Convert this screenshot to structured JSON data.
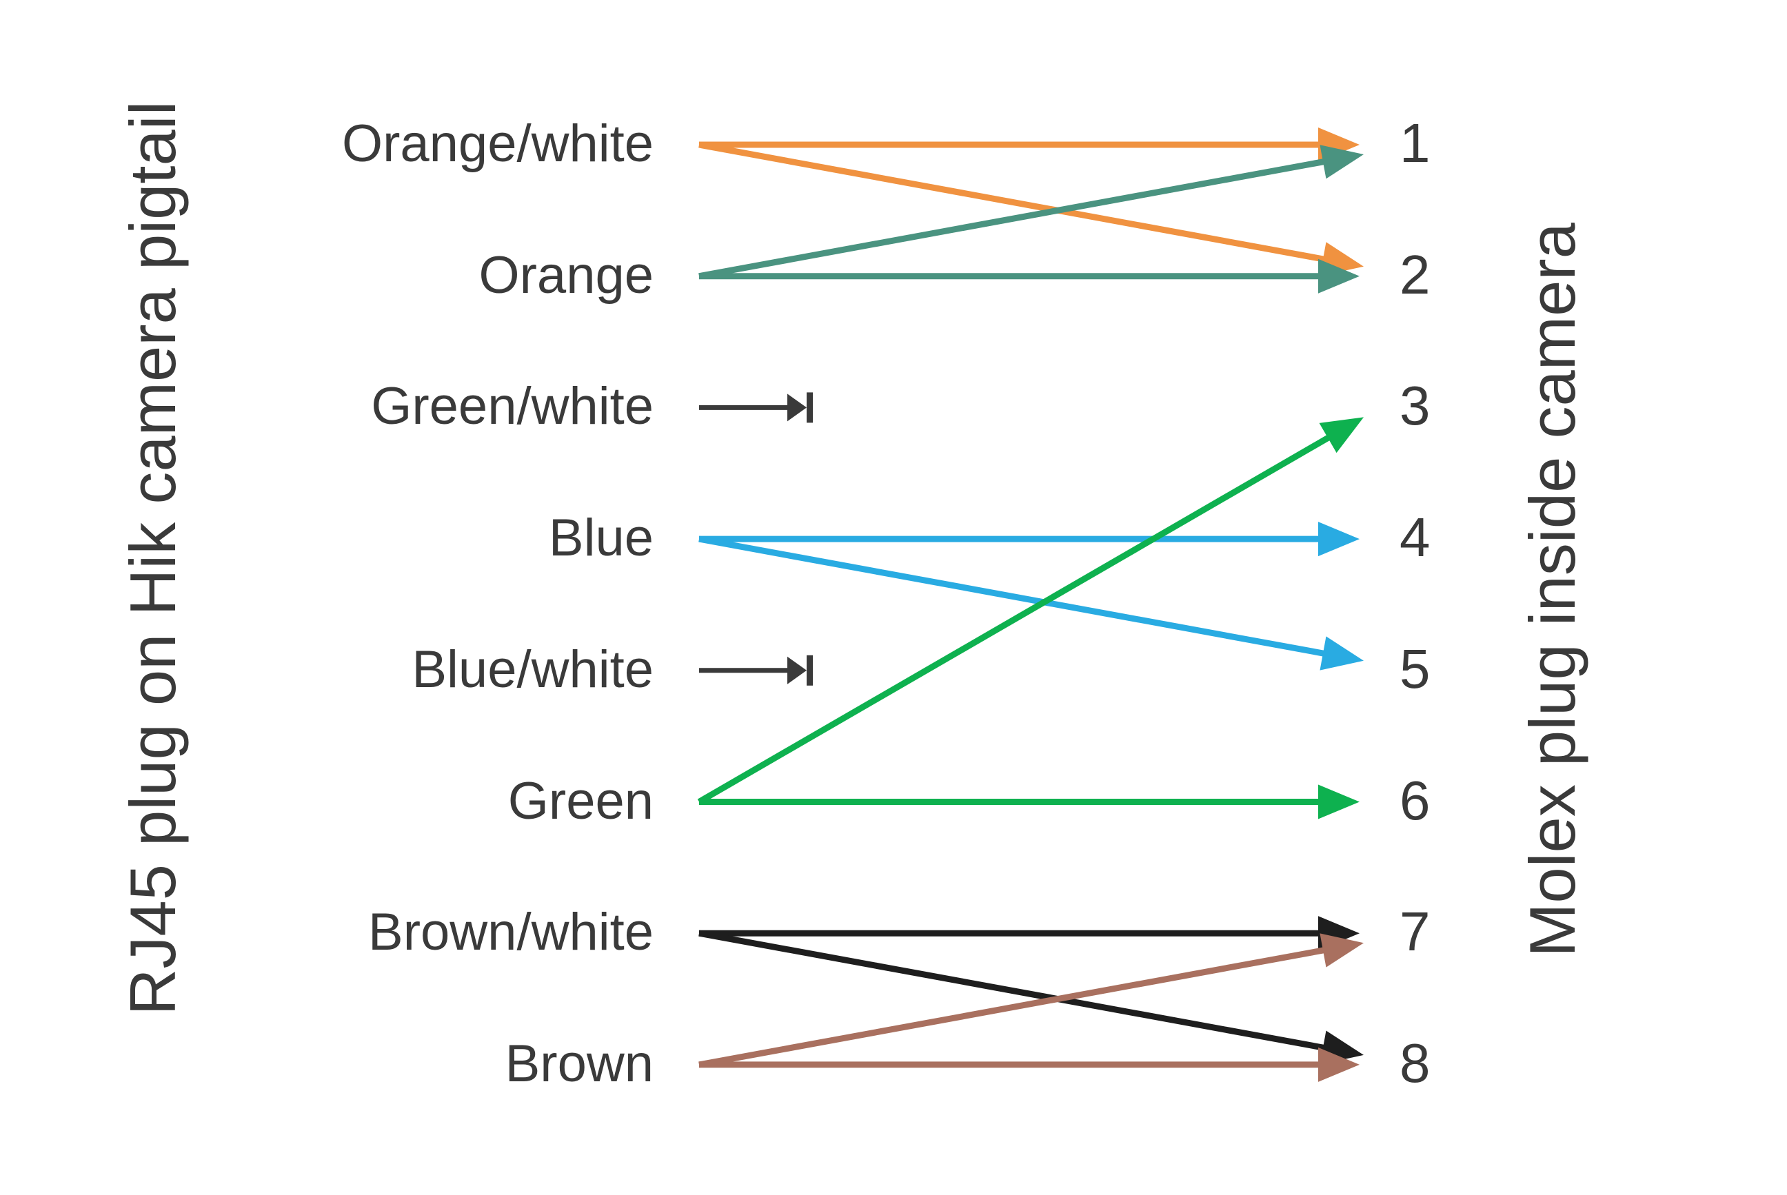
{
  "left_axis_title": "RJ45 plug on Hik camera pigtail",
  "right_axis_title": "Molex plug inside camera",
  "text_color": "#3a3a3a",
  "background_color": "#ffffff",
  "diagram": {
    "type": "wiring-map",
    "left_labels": [
      "Orange/white",
      "Orange",
      "Green/white",
      "Blue",
      "Blue/white",
      "Green",
      "Brown/white",
      "Brown"
    ],
    "right_labels": [
      "1",
      "2",
      "3",
      "4",
      "5",
      "6",
      "7",
      "8"
    ],
    "connections": [
      {
        "from": "Orange/white",
        "to": [
          1,
          2
        ],
        "terminated": false,
        "color": "#f09240"
      },
      {
        "from": "Orange",
        "to": [
          2,
          1
        ],
        "terminated": false,
        "color": "#4a9380"
      },
      {
        "from": "Green/white",
        "to": [],
        "terminated": true,
        "color": "#3a3a3a"
      },
      {
        "from": "Blue",
        "to": [
          4,
          5
        ],
        "terminated": false,
        "color": "#29abe2"
      },
      {
        "from": "Blue/white",
        "to": [],
        "terminated": true,
        "color": "#3a3a3a"
      },
      {
        "from": "Green",
        "to": [
          6,
          3
        ],
        "terminated": false,
        "color": "#0eb14f"
      },
      {
        "from": "Brown/white",
        "to": [
          7,
          8
        ],
        "terminated": false,
        "color": "#1e1e1e"
      },
      {
        "from": "Brown",
        "to": [
          8,
          7
        ],
        "terminated": false,
        "color": "#a9705f"
      }
    ]
  }
}
